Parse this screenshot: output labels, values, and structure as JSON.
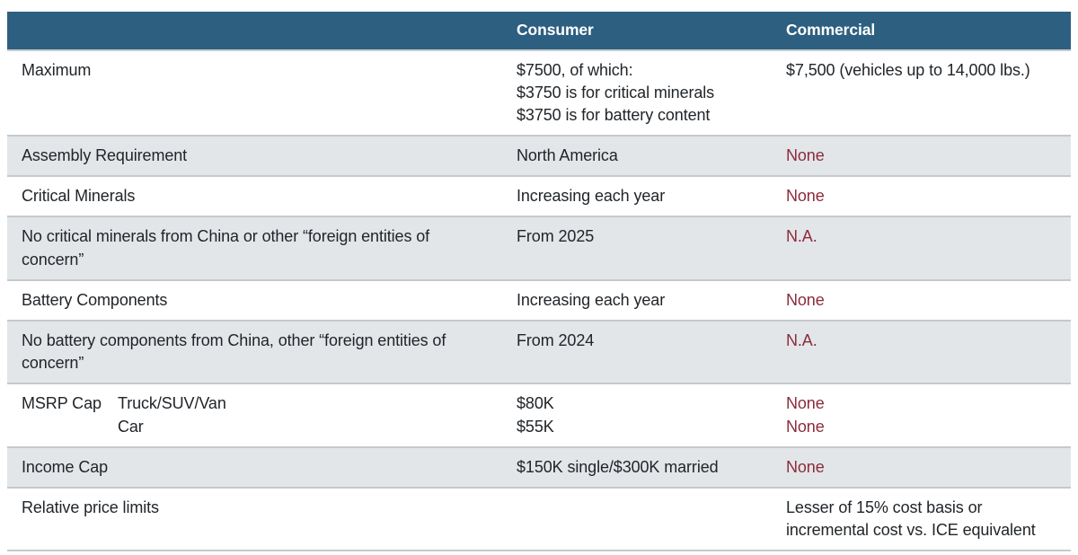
{
  "colors": {
    "header_bg": "#2d5f80",
    "header_text": "#ffffff",
    "row_stripe_bg": "#e3e6e9",
    "row_white_bg": "#ffffff",
    "divider": "#c6c9cc",
    "body_text": "#212529",
    "negative_text": "#8c2b3c"
  },
  "chart_data": {
    "type": "table",
    "columns": [
      "",
      "Consumer",
      "Commercial"
    ],
    "rows": [
      {
        "label": "Maximum",
        "consumer": [
          "$7500, of which:",
          "$3750 is for critical minerals",
          "$3750 is for battery content"
        ],
        "commercial": [
          "$7,500 (vehicles up to 14,000 lbs.)"
        ],
        "commercial_negative": false
      },
      {
        "label": "Assembly Requirement",
        "consumer": [
          "North America"
        ],
        "commercial": [
          "None"
        ],
        "commercial_negative": true
      },
      {
        "label": "Critical Minerals",
        "consumer": [
          "Increasing each year"
        ],
        "commercial": [
          "None"
        ],
        "commercial_negative": true
      },
      {
        "label": "No critical minerals from China or other “foreign entities of concern”",
        "consumer": [
          "From 2025"
        ],
        "commercial": [
          "N.A."
        ],
        "commercial_negative": true
      },
      {
        "label": "Battery Components",
        "consumer": [
          "Increasing each year"
        ],
        "commercial": [
          "None"
        ],
        "commercial_negative": true
      },
      {
        "label": "No battery components from China, other “foreign entities of concern”",
        "consumer": [
          "From 2024"
        ],
        "commercial": [
          "N.A."
        ],
        "commercial_negative": true
      },
      {
        "label": "MSRP Cap",
        "sublabels": [
          "Truck/SUV/Van",
          "Car"
        ],
        "consumer": [
          "$80K",
          "$55K"
        ],
        "commercial": [
          "None",
          "None"
        ],
        "commercial_negative": true
      },
      {
        "label": "Income Cap",
        "consumer": [
          "$150K single/$300K married"
        ],
        "commercial": [
          "None"
        ],
        "commercial_negative": true
      },
      {
        "label": "Relative price limits",
        "consumer": [],
        "commercial": [
          "Lesser of 15% cost basis or",
          "incremental cost vs. ICE equivalent"
        ],
        "commercial_negative": false
      }
    ]
  }
}
